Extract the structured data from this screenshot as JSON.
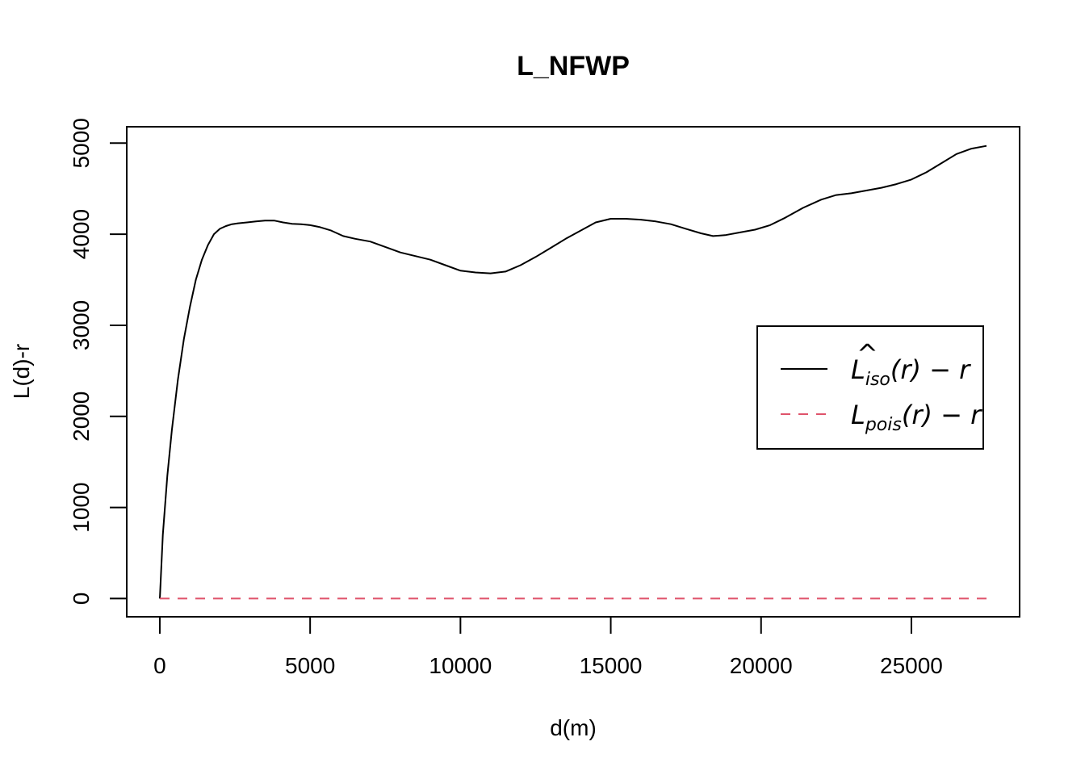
{
  "chart_data": {
    "type": "line",
    "title": "L_NFWP",
    "xlabel": "d(m)",
    "ylabel": "L(d)-r",
    "xlim": [
      -1100,
      28600
    ],
    "ylim": [
      -200,
      5180
    ],
    "xticks": [
      0,
      5000,
      10000,
      15000,
      20000,
      25000
    ],
    "yticks": [
      0,
      1000,
      2000,
      3000,
      4000,
      5000
    ],
    "legend_position": "right",
    "colors": {
      "iso": "#000000",
      "pois": "#DF536B"
    },
    "series": [
      {
        "key": "iso",
        "name": "L̂_iso(r) − r",
        "legend_main": "L",
        "legend_hat": "^",
        "legend_sub": "iso",
        "legend_tail": "(r) − r",
        "line": "solid",
        "x": [
          0,
          100,
          250,
          400,
          600,
          800,
          1000,
          1200,
          1400,
          1600,
          1800,
          2000,
          2200,
          2400,
          2600,
          2900,
          3200,
          3500,
          3800,
          4100,
          4400,
          4700,
          5000,
          5300,
          5700,
          6100,
          6500,
          7000,
          7500,
          8000,
          8500,
          9000,
          9500,
          10000,
          10500,
          11000,
          11500,
          12000,
          12500,
          13000,
          13500,
          14000,
          14500,
          15000,
          15500,
          16000,
          16500,
          17000,
          17500,
          18000,
          18400,
          18800,
          19300,
          19800,
          20300,
          20800,
          21400,
          22000,
          22500,
          23000,
          23500,
          24000,
          24500,
          25000,
          25500,
          26000,
          26500,
          27000,
          27500
        ],
        "y": [
          0,
          700,
          1350,
          1850,
          2400,
          2850,
          3200,
          3500,
          3720,
          3880,
          4000,
          4060,
          4090,
          4110,
          4120,
          4130,
          4140,
          4150,
          4150,
          4130,
          4115,
          4110,
          4100,
          4080,
          4040,
          3980,
          3950,
          3920,
          3860,
          3800,
          3760,
          3720,
          3660,
          3600,
          3580,
          3570,
          3590,
          3660,
          3750,
          3850,
          3950,
          4040,
          4130,
          4170,
          4170,
          4160,
          4140,
          4110,
          4060,
          4010,
          3980,
          3990,
          4020,
          4050,
          4100,
          4180,
          4290,
          4380,
          4430,
          4450,
          4480,
          4510,
          4550,
          4600,
          4680,
          4780,
          4880,
          4940,
          4970
        ]
      },
      {
        "key": "pois",
        "name": "L_pois(r) − r",
        "legend_main": "L",
        "legend_sub": "pois",
        "legend_tail": "(r) − r",
        "line": "dashed",
        "x": [
          0,
          27500
        ],
        "y": [
          0,
          0
        ]
      }
    ]
  }
}
